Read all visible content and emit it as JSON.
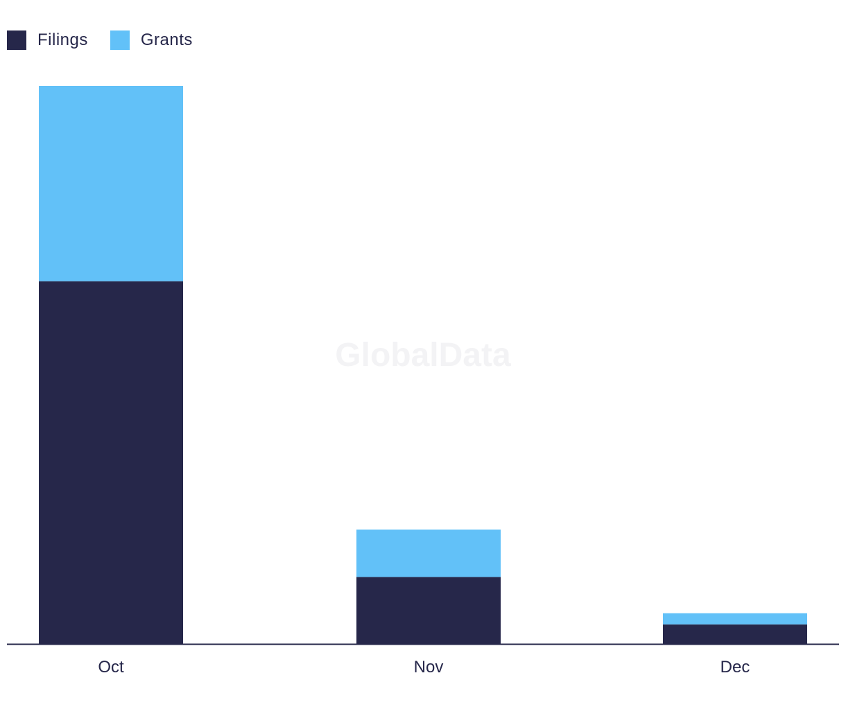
{
  "watermark": "GlobalData",
  "colors": {
    "filings": "#26274a",
    "grants": "#62c1f8",
    "axis": "#26274a"
  },
  "legend": [
    {
      "name": "Filings",
      "color": "#26274a"
    },
    {
      "name": "Grants",
      "color": "#62c1f8"
    }
  ],
  "chart_data": {
    "type": "bar",
    "stacked": true,
    "categories": [
      "Oct",
      "Nov",
      "Dec"
    ],
    "series": [
      {
        "name": "Filings",
        "values": [
          65,
          12,
          3.5
        ]
      },
      {
        "name": "Grants",
        "values": [
          35,
          8.5,
          2
        ]
      }
    ],
    "ylim": [
      0,
      100
    ],
    "grid": false,
    "legend_position": "top-left"
  }
}
